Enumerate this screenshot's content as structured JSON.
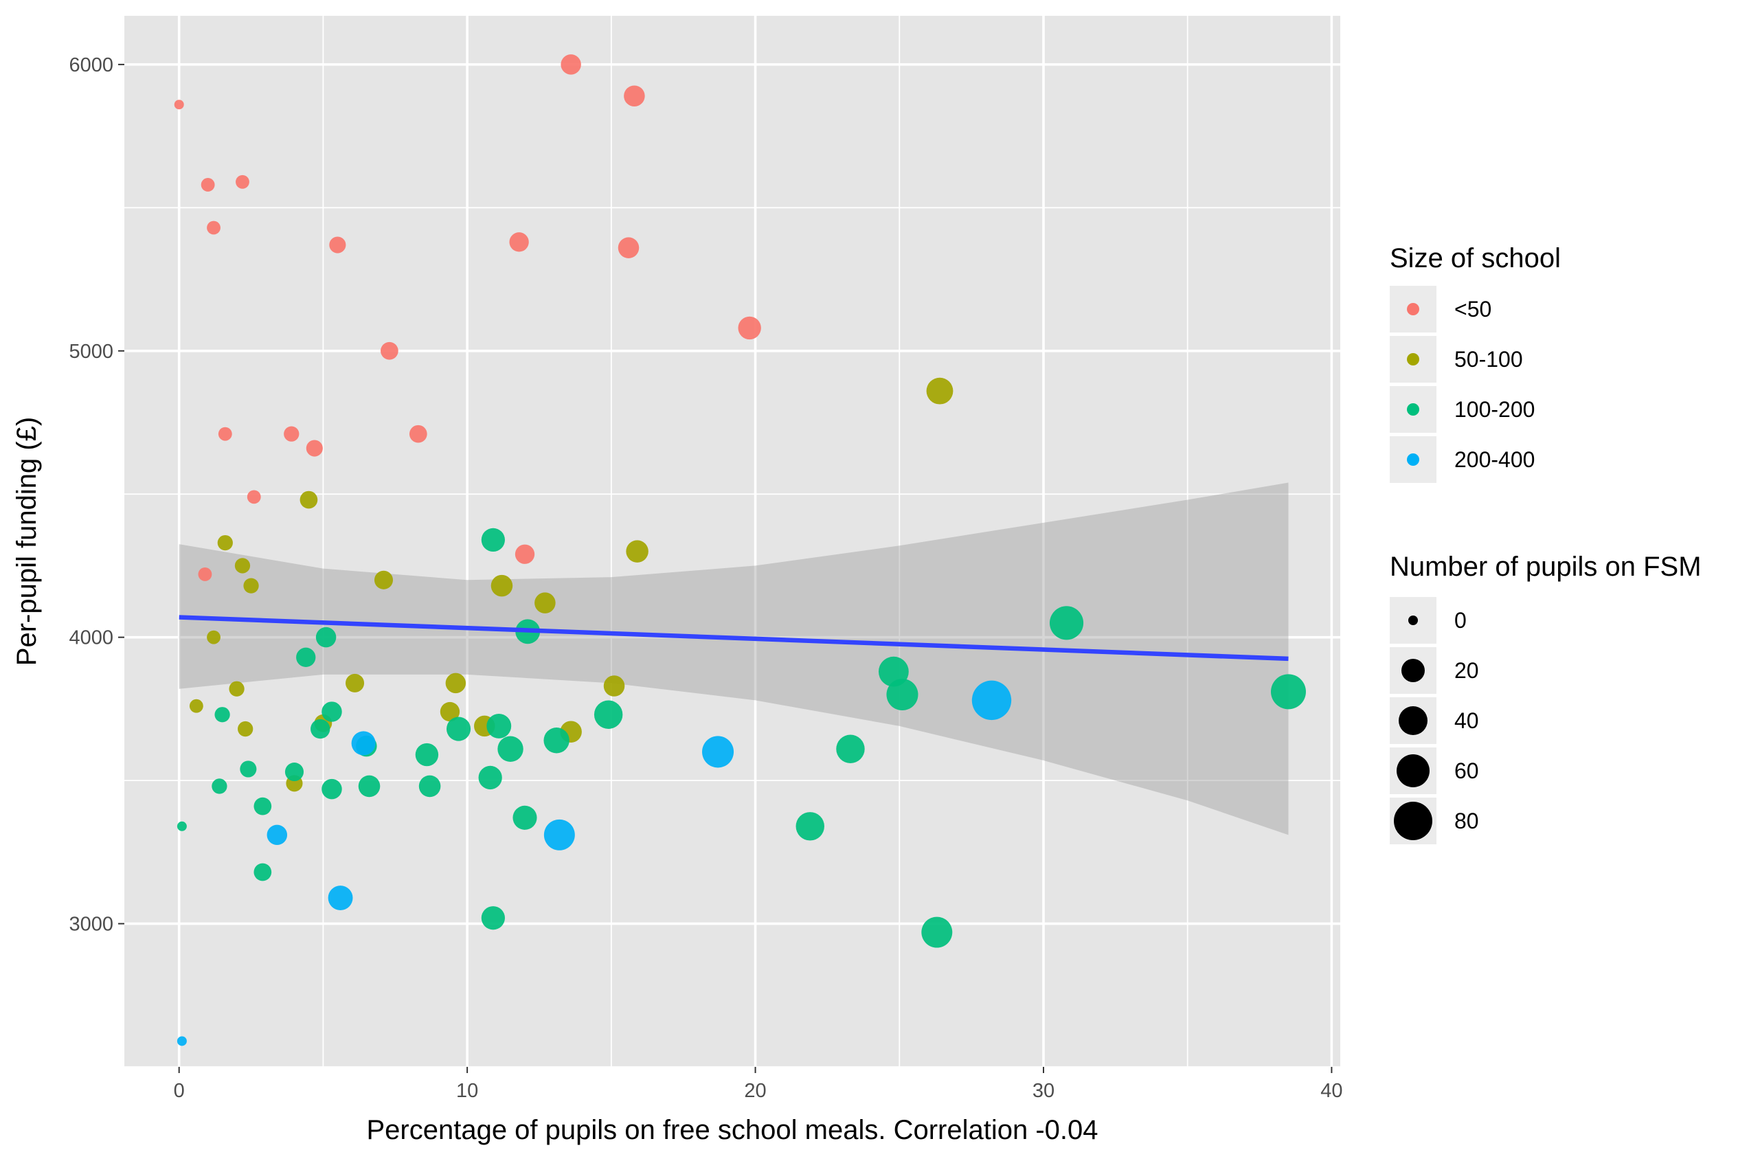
{
  "chart_data": {
    "type": "scatter",
    "title": "",
    "xlabel": "Percentage of pupils on free school meals. Correlation -0.04",
    "ylabel": "Per-pupil funding (£)",
    "xlim": [
      -1.9,
      40.3
    ],
    "ylim": [
      2500,
      6170
    ],
    "x_ticks": [
      0,
      10,
      20,
      30,
      40
    ],
    "y_ticks": [
      3000,
      4000,
      5000,
      6000
    ],
    "x_tick_labels": [
      "0",
      "10",
      "20",
      "30",
      "40"
    ],
    "y_tick_labels": [
      "3000",
      "4000",
      "5000",
      "6000"
    ],
    "grid": true,
    "legend_position": "right",
    "colors": {
      "panel": "#E5E5E5",
      "grid": "#FFFFFF",
      "ribbon": "#999999",
      "trend": "#3344FF",
      "legend_key_bg": "#EBEBEB"
    },
    "color_legend": {
      "title": "Size of school",
      "entries": [
        {
          "label": "<50",
          "color": "#F8766D"
        },
        {
          "label": "50-100",
          "color": "#A3A500"
        },
        {
          "label": "100-200",
          "color": "#00BF7D"
        },
        {
          "label": "200-400",
          "color": "#00B0F6"
        }
      ]
    },
    "size_legend": {
      "title": "Number of pupils on FSM",
      "values": [
        "0",
        "20",
        "40",
        "60",
        "80"
      ]
    },
    "trend": {
      "x": [
        0,
        38.5
      ],
      "y": [
        4070,
        3925
      ],
      "ci_upper": [
        [
          0,
          4325
        ],
        [
          5,
          4240
        ],
        [
          10,
          4200
        ],
        [
          15,
          4210
        ],
        [
          20,
          4250
        ],
        [
          25,
          4320
        ],
        [
          30,
          4400
        ],
        [
          35,
          4480
        ],
        [
          38.5,
          4540
        ]
      ],
      "ci_lower": [
        [
          0,
          3820
        ],
        [
          5,
          3870
        ],
        [
          10,
          3870
        ],
        [
          15,
          3840
        ],
        [
          20,
          3780
        ],
        [
          25,
          3690
        ],
        [
          30,
          3570
        ],
        [
          35,
          3430
        ],
        [
          38.5,
          3310
        ]
      ]
    },
    "series": [
      {
        "name": "<50",
        "points": [
          {
            "x": 0.0,
            "y": 5860,
            "fsm": 0
          },
          {
            "x": 1.0,
            "y": 5580,
            "fsm": 1
          },
          {
            "x": 1.2,
            "y": 5430,
            "fsm": 1
          },
          {
            "x": 2.2,
            "y": 5590,
            "fsm": 1
          },
          {
            "x": 5.5,
            "y": 5370,
            "fsm": 3
          },
          {
            "x": 1.6,
            "y": 4710,
            "fsm": 1
          },
          {
            "x": 3.9,
            "y": 4710,
            "fsm": 2
          },
          {
            "x": 4.7,
            "y": 4660,
            "fsm": 3
          },
          {
            "x": 7.3,
            "y": 5000,
            "fsm": 4
          },
          {
            "x": 8.3,
            "y": 4710,
            "fsm": 4
          },
          {
            "x": 2.6,
            "y": 4490,
            "fsm": 1
          },
          {
            "x": 0.9,
            "y": 4220,
            "fsm": 1
          },
          {
            "x": 11.8,
            "y": 5380,
            "fsm": 6
          },
          {
            "x": 12.0,
            "y": 4290,
            "fsm": 6
          },
          {
            "x": 13.6,
            "y": 6000,
            "fsm": 7
          },
          {
            "x": 15.6,
            "y": 5360,
            "fsm": 8
          },
          {
            "x": 15.8,
            "y": 5890,
            "fsm": 8
          },
          {
            "x": 19.8,
            "y": 5080,
            "fsm": 11
          }
        ]
      },
      {
        "name": "50-100",
        "points": [
          {
            "x": 0.6,
            "y": 3760,
            "fsm": 1
          },
          {
            "x": 1.2,
            "y": 4000,
            "fsm": 1
          },
          {
            "x": 1.6,
            "y": 4330,
            "fsm": 2
          },
          {
            "x": 2.0,
            "y": 3820,
            "fsm": 2
          },
          {
            "x": 2.2,
            "y": 4250,
            "fsm": 2
          },
          {
            "x": 2.5,
            "y": 4180,
            "fsm": 2
          },
          {
            "x": 2.3,
            "y": 3680,
            "fsm": 2
          },
          {
            "x": 4.0,
            "y": 3490,
            "fsm": 3
          },
          {
            "x": 4.5,
            "y": 4480,
            "fsm": 4
          },
          {
            "x": 5.0,
            "y": 3700,
            "fsm": 4
          },
          {
            "x": 6.1,
            "y": 3840,
            "fsm": 5
          },
          {
            "x": 7.1,
            "y": 4200,
            "fsm": 5
          },
          {
            "x": 9.4,
            "y": 3740,
            "fsm": 6
          },
          {
            "x": 9.6,
            "y": 3840,
            "fsm": 7
          },
          {
            "x": 10.6,
            "y": 3690,
            "fsm": 8
          },
          {
            "x": 11.2,
            "y": 4180,
            "fsm": 9
          },
          {
            "x": 12.7,
            "y": 4120,
            "fsm": 8
          },
          {
            "x": 13.6,
            "y": 3670,
            "fsm": 9
          },
          {
            "x": 15.1,
            "y": 3830,
            "fsm": 8
          },
          {
            "x": 15.9,
            "y": 4300,
            "fsm": 10
          },
          {
            "x": 26.4,
            "y": 4860,
            "fsm": 18
          }
        ]
      },
      {
        "name": "100-200",
        "points": [
          {
            "x": 0.1,
            "y": 3340,
            "fsm": 0
          },
          {
            "x": 1.4,
            "y": 3480,
            "fsm": 2
          },
          {
            "x": 1.5,
            "y": 3730,
            "fsm": 2
          },
          {
            "x": 2.4,
            "y": 3540,
            "fsm": 3
          },
          {
            "x": 2.9,
            "y": 3410,
            "fsm": 4
          },
          {
            "x": 2.9,
            "y": 3180,
            "fsm": 4
          },
          {
            "x": 4.0,
            "y": 3530,
            "fsm": 5
          },
          {
            "x": 4.4,
            "y": 3930,
            "fsm": 6
          },
          {
            "x": 4.9,
            "y": 3680,
            "fsm": 6
          },
          {
            "x": 5.1,
            "y": 4000,
            "fsm": 7
          },
          {
            "x": 5.3,
            "y": 3470,
            "fsm": 7
          },
          {
            "x": 5.3,
            "y": 3740,
            "fsm": 7
          },
          {
            "x": 6.5,
            "y": 3620,
            "fsm": 8
          },
          {
            "x": 6.6,
            "y": 3480,
            "fsm": 9
          },
          {
            "x": 8.6,
            "y": 3590,
            "fsm": 11
          },
          {
            "x": 8.7,
            "y": 3480,
            "fsm": 9
          },
          {
            "x": 9.7,
            "y": 3680,
            "fsm": 13
          },
          {
            "x": 10.8,
            "y": 3510,
            "fsm": 12
          },
          {
            "x": 10.9,
            "y": 4340,
            "fsm": 12
          },
          {
            "x": 10.9,
            "y": 3020,
            "fsm": 12
          },
          {
            "x": 11.1,
            "y": 3690,
            "fsm": 14
          },
          {
            "x": 11.5,
            "y": 3610,
            "fsm": 16
          },
          {
            "x": 12.0,
            "y": 3370,
            "fsm": 13
          },
          {
            "x": 12.1,
            "y": 4020,
            "fsm": 14
          },
          {
            "x": 13.1,
            "y": 3640,
            "fsm": 16
          },
          {
            "x": 14.9,
            "y": 3730,
            "fsm": 22
          },
          {
            "x": 21.9,
            "y": 3340,
            "fsm": 22
          },
          {
            "x": 23.3,
            "y": 3610,
            "fsm": 22
          },
          {
            "x": 24.8,
            "y": 3880,
            "fsm": 26
          },
          {
            "x": 25.1,
            "y": 3800,
            "fsm": 30
          },
          {
            "x": 26.3,
            "y": 2970,
            "fsm": 28
          },
          {
            "x": 30.8,
            "y": 4050,
            "fsm": 36
          },
          {
            "x": 38.5,
            "y": 3810,
            "fsm": 40
          }
        ]
      },
      {
        "name": "200-400",
        "points": [
          {
            "x": 0.1,
            "y": 2590,
            "fsm": 0
          },
          {
            "x": 3.4,
            "y": 3310,
            "fsm": 7
          },
          {
            "x": 5.6,
            "y": 3090,
            "fsm": 14
          },
          {
            "x": 6.4,
            "y": 3630,
            "fsm": 13
          },
          {
            "x": 13.2,
            "y": 3310,
            "fsm": 28
          },
          {
            "x": 18.7,
            "y": 3600,
            "fsm": 30
          },
          {
            "x": 28.2,
            "y": 3780,
            "fsm": 55
          }
        ]
      }
    ]
  }
}
